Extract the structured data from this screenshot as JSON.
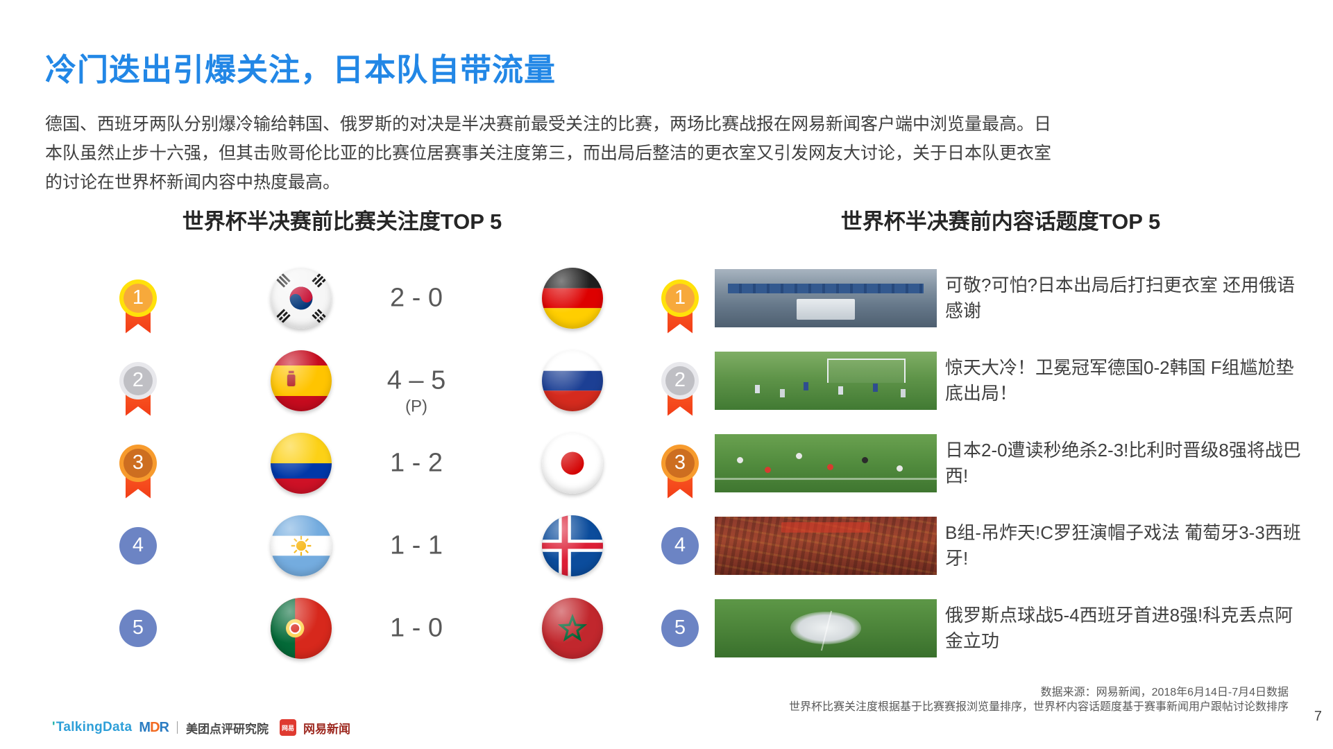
{
  "slide": {
    "title": "冷门迭出引爆关注，日本队自带流量",
    "paragraph_lines": [
      "德国、西班牙两队分别爆冷输给韩国、俄罗斯的对决是半决赛前最受关注的比赛，两场比赛战报在网易新闻客户端中浏览量最高。日",
      "本队虽然止步十六强，但其击败哥伦比亚的比赛位居赛事关注度第三，而出局后整洁的更衣室又引发网友大讨论，关于日本队更衣室",
      "的讨论在世界杯新闻内容中热度最高。"
    ]
  },
  "left_panel": {
    "header": "世界杯半决赛前比赛关注度TOP 5",
    "rows": [
      {
        "rank": "1",
        "home": "south-korea",
        "score": "2 - 0",
        "note": "",
        "away": "germany"
      },
      {
        "rank": "2",
        "home": "spain",
        "score": "4 – 5",
        "note": "(P)",
        "away": "russia"
      },
      {
        "rank": "3",
        "home": "colombia",
        "score": "1 - 2",
        "note": "",
        "away": "japan"
      },
      {
        "rank": "4",
        "home": "argentina",
        "score": "1 - 1",
        "note": "",
        "away": "iceland"
      },
      {
        "rank": "5",
        "home": "portugal",
        "score": "1 - 0",
        "note": "",
        "away": "morocco"
      }
    ]
  },
  "right_panel": {
    "header": "世界杯半决赛前内容话题度TOP 5",
    "rows": [
      {
        "rank": "1",
        "thumb": "locker-room",
        "text": "可敬?可怕?日本出局后打扫更衣室 还用俄语感谢"
      },
      {
        "rank": "2",
        "thumb": "goal-pitch",
        "text": "惊天大冷！卫冕冠军德国0-2韩国 F组尴尬垫底出局！"
      },
      {
        "rank": "3",
        "thumb": "pitch-players",
        "text": "日本2-0遭读秒绝杀2-3!比利时晋级8强将战巴西!"
      },
      {
        "rank": "4",
        "thumb": "red-crowd",
        "text": "B组-吊炸天!C罗狂演帽子戏法 葡萄牙3-3西班牙!"
      },
      {
        "rank": "5",
        "thumb": "celebration-huddle",
        "text": "俄罗斯点球战5-4西班牙首进8强!科克丢点阿金立功"
      }
    ]
  },
  "footer": {
    "source_line1": "数据来源：网易新闻，2018年6月14日-7月4日数据",
    "source_line2": "世界杯比赛关注度根据基于比赛赛报浏览量排序，世界杯内容话题度基于赛事新闻用户跟帖讨论数排序",
    "page_number": "7",
    "logos": {
      "talkingdata": "TalkingData",
      "mdr_letters": [
        "M",
        "D",
        "R"
      ],
      "meituan": "美团点评研究院",
      "netease_badge": "网易",
      "netease": "网易新闻"
    }
  },
  "colors": {
    "title_blue": "#2287E6",
    "body_text": "#3F3F3F",
    "score_gray": "#595959",
    "medal_gold_ring": "#FFE10A",
    "medal_gold_core": "#F7A93B",
    "medal_silver_ring": "#E8E8EC",
    "medal_silver_core": "#BFBFC4",
    "medal_bronze_ring": "#F79B2D",
    "medal_bronze_core": "#CD6E20",
    "ribbon_red": "#F23D17",
    "rank_plain_blue": "#6C84C4"
  }
}
